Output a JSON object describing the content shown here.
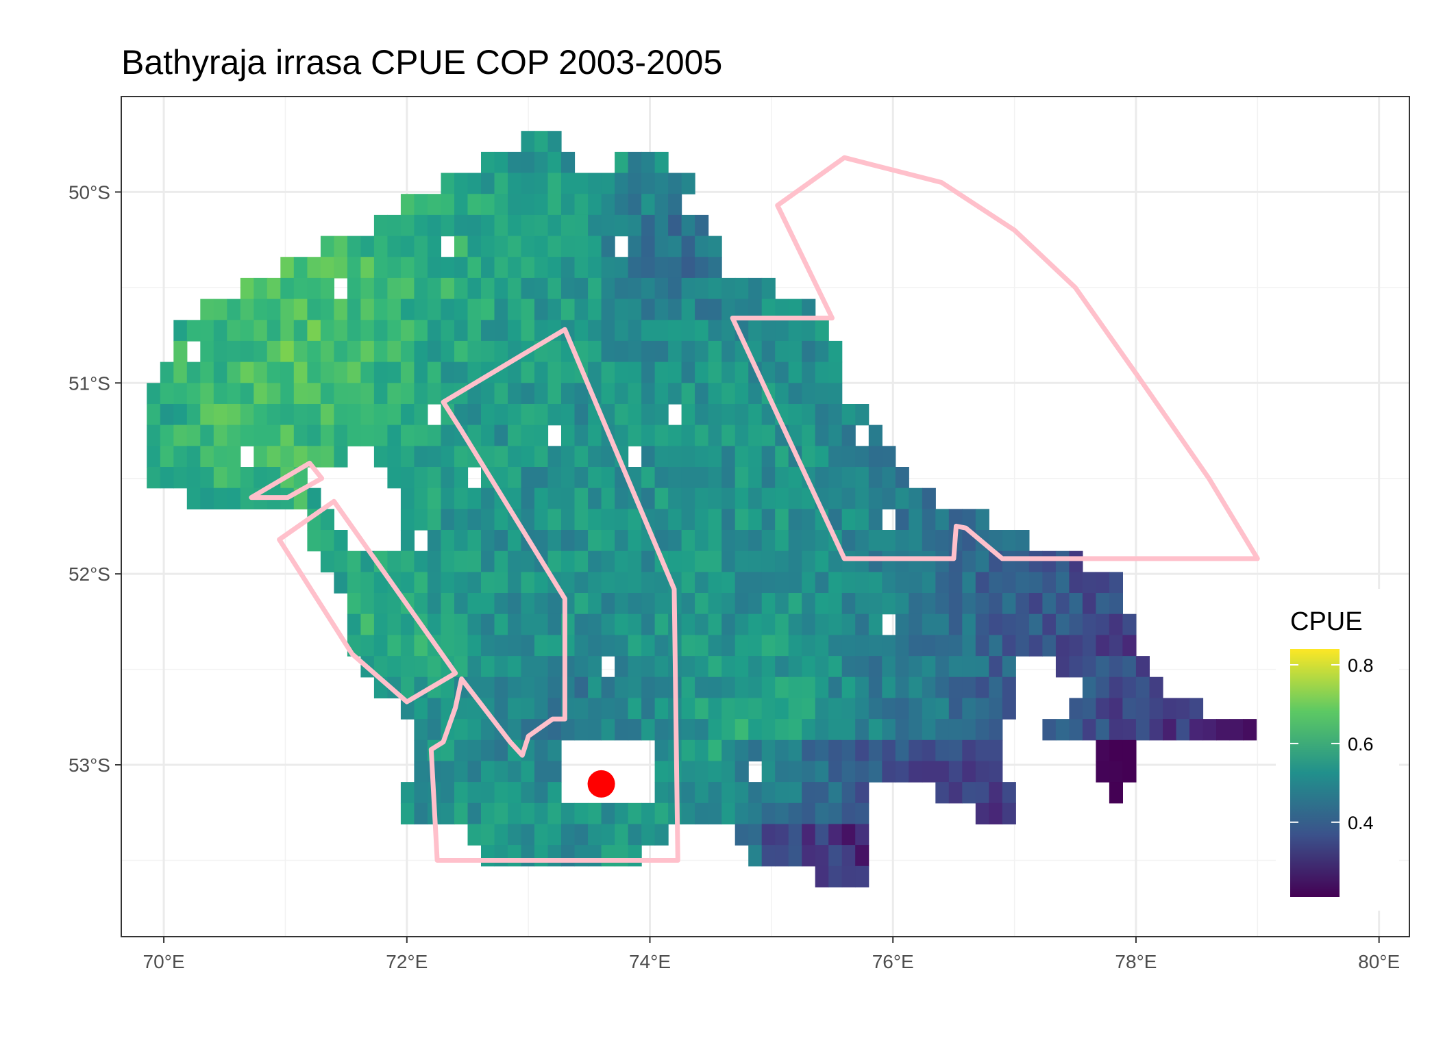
{
  "title": "Bathyraja irrasa  CPUE COP 2003-2005",
  "map": {
    "x_axis": {
      "unit": "degrees_east",
      "range": [
        69.65,
        80.25
      ],
      "ticks": [
        70,
        72,
        74,
        76,
        78,
        80
      ],
      "tick_labels": [
        "70°E",
        "72°E",
        "74°E",
        "76°E",
        "78°E",
        "80°E"
      ]
    },
    "y_axis": {
      "unit": "degrees_latitude",
      "range": [
        -53.9,
        -49.5
      ],
      "ticks": [
        -50,
        -51,
        -52,
        -53
      ],
      "tick_labels": [
        "50°S",
        "51°S",
        "52°S",
        "53°S"
      ]
    },
    "grid": true,
    "theme": "white background, light grey gridlines, black panel border"
  },
  "legend": {
    "title": "CPUE",
    "labels": [
      "0.8",
      "0.6",
      "0.4"
    ],
    "tick_values": [
      0.8,
      0.6,
      0.4
    ],
    "range": [
      0.21,
      0.84
    ],
    "colormap": "viridis",
    "colors": [
      "#440154",
      "#3b528b",
      "#21908c",
      "#5dc963",
      "#fde725"
    ],
    "placement": "right"
  },
  "cpue_raster": {
    "description": "gridded CPUE values over the Kerguelen plateau, interpolated viridis color",
    "cell_size_deg": 0.11,
    "approx_value_range": [
      0.21,
      0.84
    ]
  },
  "overlay": {
    "polygon_color": "#ffc0cb",
    "point_color": "#ff0000",
    "point_lonlat": [
      73.6,
      -53.1
    ],
    "polygons_lonlat": [
      [
        [
          75.6,
          -49.82
        ],
        [
          75.05,
          -50.07
        ],
        [
          75.5,
          -50.66
        ],
        [
          74.68,
          -50.66
        ],
        [
          75.6,
          -51.92
        ],
        [
          76.5,
          -51.92
        ],
        [
          76.52,
          -51.75
        ],
        [
          76.6,
          -51.76
        ],
        [
          76.9,
          -51.92
        ],
        [
          79.0,
          -51.92
        ],
        [
          78.6,
          -51.5
        ],
        [
          78.0,
          -50.95
        ],
        [
          77.5,
          -50.5
        ],
        [
          77.0,
          -50.2
        ],
        [
          76.4,
          -49.95
        ],
        [
          75.6,
          -49.82
        ]
      ],
      [
        [
          73.3,
          -50.72
        ],
        [
          72.3,
          -51.1
        ],
        [
          72.45,
          -51.25
        ],
        [
          73.3,
          -52.13
        ],
        [
          73.3,
          -52.76
        ],
        [
          73.2,
          -52.76
        ],
        [
          73.0,
          -52.85
        ],
        [
          72.95,
          -52.95
        ],
        [
          72.85,
          -52.88
        ],
        [
          72.45,
          -52.55
        ],
        [
          72.4,
          -52.7
        ],
        [
          72.3,
          -52.88
        ],
        [
          72.2,
          -52.92
        ],
        [
          72.25,
          -53.5
        ],
        [
          74.23,
          -53.5
        ],
        [
          74.2,
          -52.08
        ],
        [
          73.3,
          -50.72
        ]
      ],
      [
        [
          71.4,
          -51.62
        ],
        [
          70.95,
          -51.82
        ],
        [
          71.55,
          -52.42
        ],
        [
          72.0,
          -52.67
        ],
        [
          72.4,
          -52.52
        ],
        [
          71.4,
          -51.62
        ]
      ],
      [
        [
          71.2,
          -51.42
        ],
        [
          70.72,
          -51.6
        ],
        [
          71.02,
          -51.6
        ],
        [
          71.3,
          -51.5
        ],
        [
          71.2,
          -51.42
        ]
      ]
    ]
  }
}
